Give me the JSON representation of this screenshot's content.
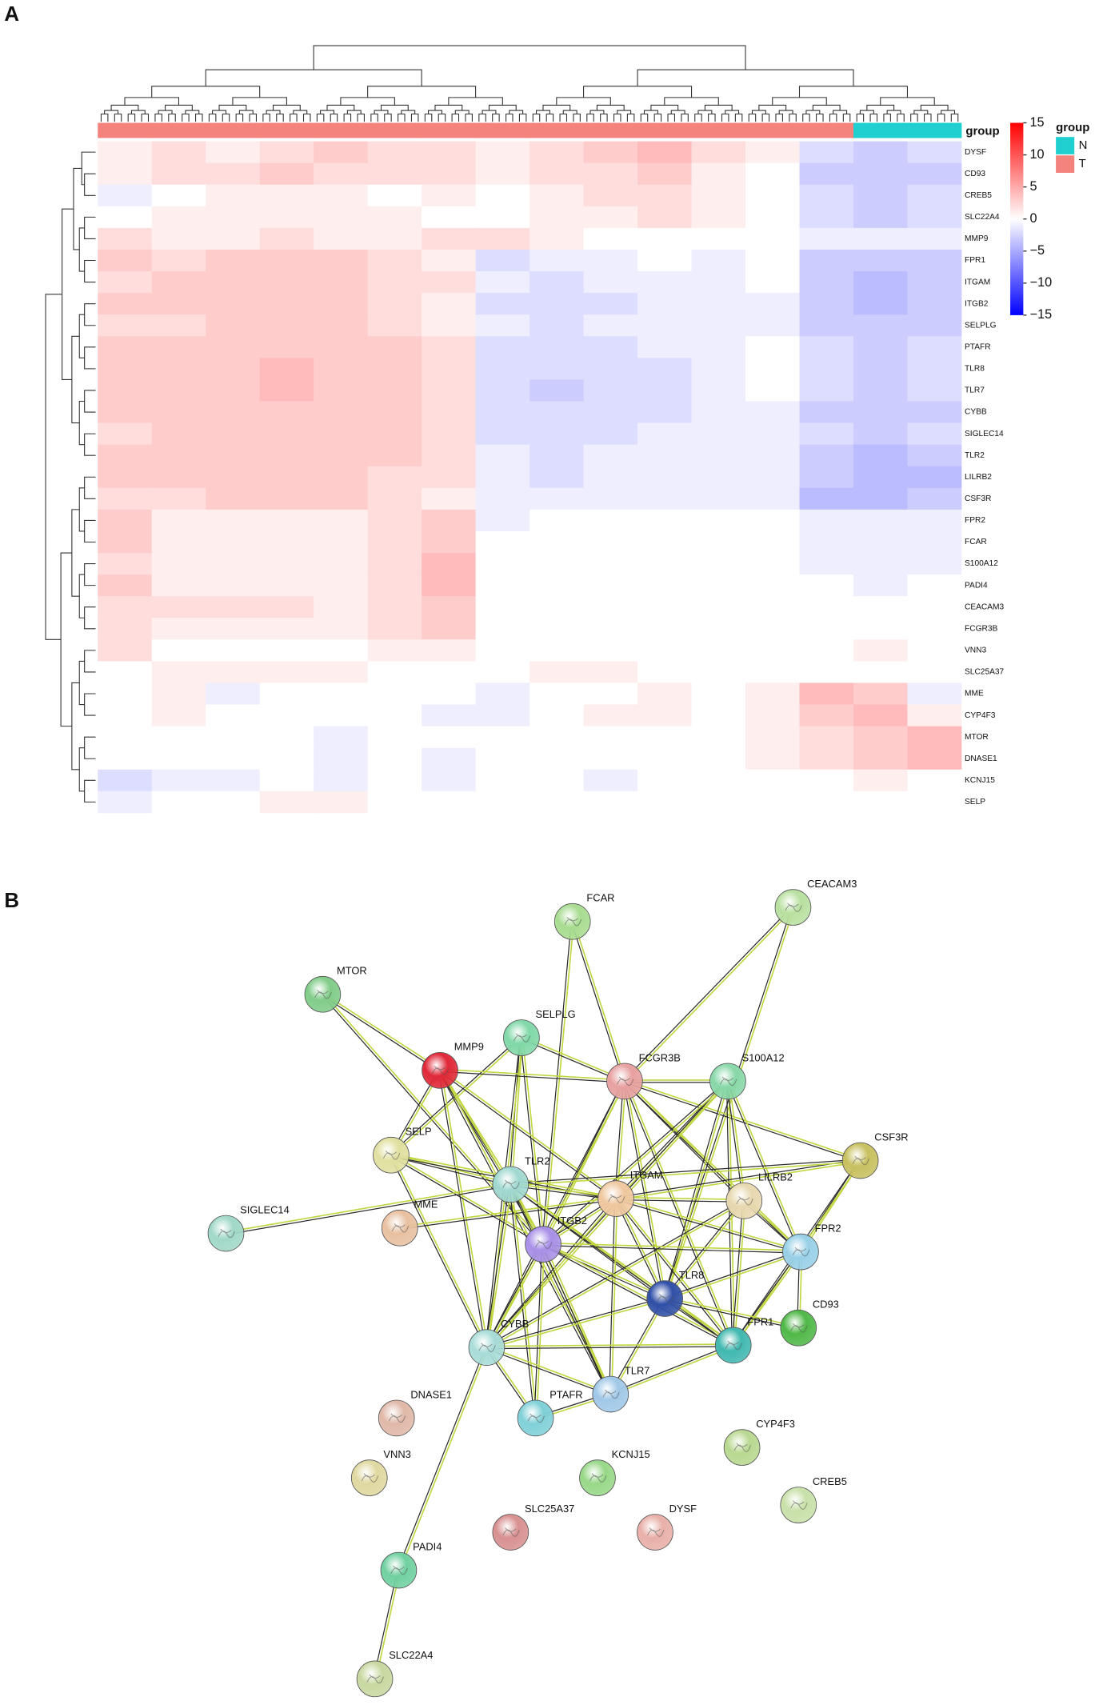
{
  "panel_a": {
    "label": "A",
    "group_label": "group",
    "legend_title": "group",
    "groups": [
      {
        "name": "N",
        "color": "#20d0d0"
      },
      {
        "name": "T",
        "color": "#f4837d"
      }
    ],
    "column_groups": [
      "T",
      "T",
      "T",
      "T",
      "T",
      "T",
      "T",
      "T",
      "T",
      "T",
      "T",
      "T",
      "T",
      "T",
      "N",
      "N"
    ],
    "colorbar": {
      "lim": [
        -15,
        15
      ],
      "colors": [
        "#0000ff",
        "#ffffff",
        "#ff0000"
      ],
      "ticks": [
        15,
        10,
        5,
        0,
        {
          "value": -5,
          "label": "−5"
        },
        {
          "value": -10,
          "label": "−10"
        },
        {
          "value": -15,
          "label": "−15"
        }
      ]
    },
    "rows": [
      {
        "label": "DYSF",
        "values": [
          1,
          2,
          1,
          2,
          3,
          2,
          2,
          1,
          2,
          3,
          4,
          2,
          1,
          -2,
          -3,
          -2
        ]
      },
      {
        "label": "CD93",
        "values": [
          1,
          2,
          2,
          3,
          2,
          2,
          2,
          1,
          2,
          2,
          3,
          1,
          0,
          -3,
          -3,
          -3
        ]
      },
      {
        "label": "CREB5",
        "values": [
          -1,
          0,
          1,
          1,
          1,
          0,
          1,
          0,
          1,
          2,
          2,
          1,
          0,
          -2,
          -3,
          -2
        ]
      },
      {
        "label": "SLC22A4",
        "values": [
          0,
          1,
          1,
          1,
          1,
          1,
          0,
          0,
          1,
          1,
          2,
          1,
          0,
          -2,
          -3,
          -2
        ]
      },
      {
        "label": "MMP9",
        "values": [
          2,
          1,
          1,
          2,
          1,
          1,
          2,
          2,
          1,
          0,
          0,
          0,
          0,
          -1,
          -1,
          -1
        ]
      },
      {
        "label": "FPR1",
        "values": [
          3,
          2,
          3,
          3,
          3,
          2,
          1,
          -2,
          -1,
          -1,
          0,
          -1,
          0,
          -3,
          -3,
          -3
        ]
      },
      {
        "label": "ITGAM",
        "values": [
          2,
          3,
          3,
          3,
          3,
          2,
          2,
          -1,
          -2,
          -1,
          -1,
          -1,
          0,
          -3,
          -4,
          -3
        ]
      },
      {
        "label": "ITGB2",
        "values": [
          3,
          3,
          3,
          3,
          3,
          2,
          1,
          -2,
          -2,
          -2,
          -1,
          -1,
          -1,
          -3,
          -4,
          -3
        ]
      },
      {
        "label": "SELPLG",
        "values": [
          2,
          2,
          3,
          3,
          3,
          2,
          1,
          -1,
          -2,
          -1,
          -1,
          -1,
          -1,
          -3,
          -3,
          -3
        ]
      },
      {
        "label": "PTAFR",
        "values": [
          3,
          3,
          3,
          3,
          3,
          3,
          2,
          -2,
          -2,
          -2,
          -1,
          -1,
          0,
          -2,
          -3,
          -2
        ]
      },
      {
        "label": "TLR8",
        "values": [
          3,
          3,
          3,
          4,
          3,
          3,
          2,
          -2,
          -2,
          -2,
          -2,
          -1,
          0,
          -2,
          -3,
          -2
        ]
      },
      {
        "label": "TLR7",
        "values": [
          3,
          3,
          3,
          4,
          3,
          3,
          2,
          -2,
          -3,
          -2,
          -2,
          -1,
          0,
          -2,
          -3,
          -2
        ]
      },
      {
        "label": "CYBB",
        "values": [
          3,
          3,
          3,
          3,
          3,
          3,
          2,
          -2,
          -2,
          -2,
          -2,
          -1,
          -1,
          -3,
          -3,
          -3
        ]
      },
      {
        "label": "SIGLEC14",
        "values": [
          2,
          3,
          3,
          3,
          3,
          3,
          2,
          -2,
          -2,
          -2,
          -1,
          -1,
          -1,
          -2,
          -3,
          -2
        ]
      },
      {
        "label": "TLR2",
        "values": [
          3,
          3,
          3,
          3,
          3,
          3,
          2,
          -1,
          -2,
          -1,
          -1,
          -1,
          -1,
          -3,
          -4,
          -3
        ]
      },
      {
        "label": "LILRB2",
        "values": [
          3,
          3,
          3,
          3,
          3,
          2,
          2,
          -1,
          -2,
          -1,
          -1,
          -1,
          -1,
          -3,
          -4,
          -4
        ]
      },
      {
        "label": "CSF3R",
        "values": [
          2,
          2,
          3,
          3,
          3,
          2,
          1,
          -1,
          -1,
          -1,
          -1,
          -1,
          -1,
          -4,
          -4,
          -3
        ]
      },
      {
        "label": "FPR2",
        "values": [
          3,
          1,
          1,
          1,
          1,
          2,
          3,
          -1,
          0,
          0,
          0,
          0,
          0,
          -1,
          -1,
          -1
        ]
      },
      {
        "label": "FCAR",
        "values": [
          3,
          1,
          1,
          1,
          1,
          2,
          3,
          0,
          0,
          0,
          0,
          0,
          0,
          -1,
          -1,
          -1
        ]
      },
      {
        "label": "S100A12",
        "values": [
          2,
          1,
          1,
          1,
          1,
          2,
          4,
          0,
          0,
          0,
          0,
          0,
          0,
          -1,
          -1,
          -1
        ]
      },
      {
        "label": "PADI4",
        "values": [
          3,
          1,
          1,
          1,
          1,
          2,
          4,
          0,
          0,
          0,
          0,
          0,
          0,
          0,
          -1,
          0
        ]
      },
      {
        "label": "CEACAM3",
        "values": [
          2,
          2,
          2,
          2,
          1,
          2,
          3,
          0,
          0,
          0,
          0,
          0,
          0,
          0,
          0,
          0
        ]
      },
      {
        "label": "FCGR3B",
        "values": [
          2,
          1,
          1,
          1,
          1,
          2,
          3,
          0,
          0,
          0,
          0,
          0,
          0,
          0,
          0,
          0
        ]
      },
      {
        "label": "VNN3",
        "values": [
          2,
          0,
          0,
          0,
          0,
          1,
          1,
          0,
          0,
          0,
          0,
          0,
          0,
          0,
          1,
          0
        ]
      },
      {
        "label": "SLC25A37",
        "values": [
          0,
          1,
          1,
          1,
          1,
          0,
          0,
          0,
          1,
          1,
          0,
          0,
          0,
          0,
          0,
          0
        ]
      },
      {
        "label": "MME",
        "values": [
          0,
          1,
          -1,
          0,
          0,
          0,
          0,
          -1,
          0,
          0,
          1,
          0,
          1,
          4,
          3,
          -1
        ]
      },
      {
        "label": "CYP4F3",
        "values": [
          0,
          1,
          0,
          0,
          0,
          0,
          -1,
          -1,
          0,
          1,
          1,
          0,
          1,
          3,
          4,
          1
        ]
      },
      {
        "label": "MTOR",
        "values": [
          0,
          0,
          0,
          0,
          -1,
          0,
          0,
          0,
          0,
          0,
          0,
          0,
          1,
          2,
          3,
          4
        ]
      },
      {
        "label": "DNASE1",
        "values": [
          0,
          0,
          0,
          0,
          -1,
          0,
          -1,
          0,
          0,
          0,
          0,
          0,
          1,
          2,
          3,
          4
        ]
      },
      {
        "label": "KCNJ15",
        "values": [
          -2,
          -1,
          -1,
          0,
          -1,
          0,
          -1,
          0,
          0,
          -1,
          0,
          0,
          0,
          0,
          1,
          0
        ]
      },
      {
        "label": "SELP",
        "values": [
          -1,
          0,
          0,
          1,
          1,
          0,
          0,
          0,
          0,
          0,
          0,
          0,
          0,
          0,
          0,
          0
        ]
      }
    ]
  },
  "panel_b": {
    "label": "B",
    "edge_color": "#c2d640",
    "edge_dark": "#2a2a2a",
    "nodes": [
      {
        "label": "FCAR",
        "color": "#a8dc90"
      },
      {
        "label": "CEACAM3",
        "color": "#b8e0a0"
      },
      {
        "label": "MTOR",
        "color": "#80cc88"
      },
      {
        "label": "SELPLG",
        "color": "#80d8a8"
      },
      {
        "label": "MMP9",
        "color": "#e02838"
      },
      {
        "label": "FCGR3B",
        "color": "#e8a0a0"
      },
      {
        "label": "S100A12",
        "color": "#88d8a8"
      },
      {
        "label": "CSF3R",
        "color": "#c8c060"
      },
      {
        "label": "SELP",
        "color": "#e0e0a0"
      },
      {
        "label": "TLR2",
        "color": "#a0d8d0"
      },
      {
        "label": "ITGAM",
        "color": "#f0c8a0"
      },
      {
        "label": "LILRB2",
        "color": "#e8d8b0"
      },
      {
        "label": "MME",
        "color": "#e8c0a0"
      },
      {
        "label": "SIGLEC14",
        "color": "#a0d8c8"
      },
      {
        "label": "ITGB2",
        "color": "#a890e8"
      },
      {
        "label": "FPR2",
        "color": "#98d0e8"
      },
      {
        "label": "TLR8",
        "color": "#3050a8"
      },
      {
        "label": "CD93",
        "color": "#50b848"
      },
      {
        "label": "CYBB",
        "color": "#a8dcd8"
      },
      {
        "label": "FPR1",
        "color": "#40b8b0"
      },
      {
        "label": "TLR7",
        "color": "#a0c8e8"
      },
      {
        "label": "PTAFR",
        "color": "#80d0d8"
      },
      {
        "label": "DNASE1",
        "color": "#e0b8a8"
      },
      {
        "label": "CYP4F3",
        "color": "#b8d890"
      },
      {
        "label": "KCNJ15",
        "color": "#98d888"
      },
      {
        "label": "VNN3",
        "color": "#e0d8a0"
      },
      {
        "label": "CREB5",
        "color": "#c8e0a8"
      },
      {
        "label": "SLC25A37",
        "color": "#d89090"
      },
      {
        "label": "DYSF",
        "color": "#e8b0a8"
      },
      {
        "label": "PADI4",
        "color": "#70d0a0"
      },
      {
        "label": "SLC22A4",
        "color": "#c8d8a0"
      }
    ],
    "edges": [
      [
        "FCAR",
        "FCGR3B"
      ],
      [
        "FCAR",
        "ITGB2"
      ],
      [
        "CEACAM3",
        "FCGR3B"
      ],
      [
        "CEACAM3",
        "TLR8"
      ],
      [
        "MTOR",
        "MMP9"
      ],
      [
        "MTOR",
        "ITGB2"
      ],
      [
        "SELPLG",
        "SELP"
      ],
      [
        "SELPLG",
        "TLR2"
      ],
      [
        "SELPLG",
        "ITGB2"
      ],
      [
        "SELPLG",
        "FCGR3B"
      ],
      [
        "SELPLG",
        "CYBB"
      ],
      [
        "MMP9",
        "SELP"
      ],
      [
        "MMP9",
        "TLR2"
      ],
      [
        "MMP9",
        "ITGB2"
      ],
      [
        "MMP9",
        "CYBB"
      ],
      [
        "MMP9",
        "TLR7"
      ],
      [
        "MMP9",
        "FCGR3B"
      ],
      [
        "MMP9",
        "ITGAM"
      ],
      [
        "FCGR3B",
        "ITGAM"
      ],
      [
        "FCGR3B",
        "ITGB2"
      ],
      [
        "FCGR3B",
        "S100A12"
      ],
      [
        "FCGR3B",
        "CSF3R"
      ],
      [
        "FCGR3B",
        "TLR8"
      ],
      [
        "FCGR3B",
        "FPR1"
      ],
      [
        "FCGR3B",
        "CYBB"
      ],
      [
        "FCGR3B",
        "LILRB2"
      ],
      [
        "FCGR3B",
        "FPR2"
      ],
      [
        "S100A12",
        "ITGAM"
      ],
      [
        "S100A12",
        "TLR8"
      ],
      [
        "S100A12",
        "FPR1"
      ],
      [
        "S100A12",
        "CYBB"
      ],
      [
        "S100A12",
        "LILRB2"
      ],
      [
        "S100A12",
        "FPR2"
      ],
      [
        "S100A12",
        "ITGB2"
      ],
      [
        "CSF3R",
        "FPR2"
      ],
      [
        "CSF3R",
        "ITGAM"
      ],
      [
        "CSF3R",
        "TLR2"
      ],
      [
        "CSF3R",
        "FPR1"
      ],
      [
        "SELP",
        "TLR2"
      ],
      [
        "SELP",
        "ITGB2"
      ],
      [
        "SELP",
        "CYBB"
      ],
      [
        "SELP",
        "ITGAM"
      ],
      [
        "SIGLEC14",
        "TLR2"
      ],
      [
        "MME",
        "ITGAM"
      ],
      [
        "TLR2",
        "ITGAM"
      ],
      [
        "TLR2",
        "ITGB2"
      ],
      [
        "TLR2",
        "TLR8"
      ],
      [
        "TLR2",
        "CYBB"
      ],
      [
        "TLR2",
        "TLR7"
      ],
      [
        "TLR2",
        "PTAFR"
      ],
      [
        "TLR2",
        "FPR1"
      ],
      [
        "ITGAM",
        "ITGB2"
      ],
      [
        "ITGAM",
        "LILRB2"
      ],
      [
        "ITGAM",
        "FPR2"
      ],
      [
        "ITGAM",
        "TLR8"
      ],
      [
        "ITGAM",
        "CYBB"
      ],
      [
        "ITGAM",
        "FPR1"
      ],
      [
        "ITGAM",
        "TLR7"
      ],
      [
        "LILRB2",
        "FPR2"
      ],
      [
        "LILRB2",
        "TLR8"
      ],
      [
        "LILRB2",
        "FPR1"
      ],
      [
        "LILRB2",
        "CYBB"
      ],
      [
        "ITGB2",
        "TLR8"
      ],
      [
        "ITGB2",
        "CYBB"
      ],
      [
        "ITGB2",
        "FPR1"
      ],
      [
        "ITGB2",
        "TLR7"
      ],
      [
        "ITGB2",
        "PTAFR"
      ],
      [
        "ITGB2",
        "FPR2"
      ],
      [
        "FPR2",
        "TLR8"
      ],
      [
        "FPR2",
        "FPR1"
      ],
      [
        "FPR2",
        "CD93"
      ],
      [
        "TLR8",
        "CYBB"
      ],
      [
        "TLR8",
        "FPR1"
      ],
      [
        "TLR8",
        "TLR7"
      ],
      [
        "TLR8",
        "CD93"
      ],
      [
        "CYBB",
        "FPR1"
      ],
      [
        "CYBB",
        "TLR7"
      ],
      [
        "CYBB",
        "PTAFR"
      ],
      [
        "CYBB",
        "PADI4"
      ],
      [
        "FPR1",
        "TLR7"
      ],
      [
        "TLR7",
        "PTAFR"
      ],
      [
        "PADI4",
        "SLC22A4"
      ]
    ]
  }
}
